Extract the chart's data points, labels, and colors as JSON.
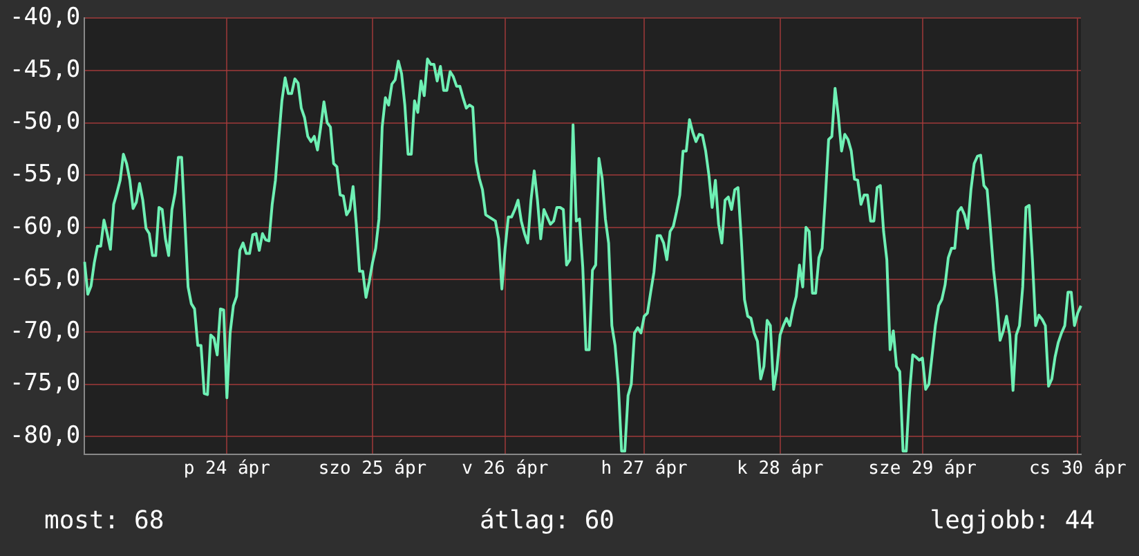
{
  "chart_data": {
    "type": "line",
    "color": "#6ef0b4",
    "categories": [
      null,
      null,
      null,
      null,
      null,
      null,
      null,
      null,
      null,
      null,
      null,
      null,
      null,
      null,
      null,
      null,
      null,
      null,
      null,
      null,
      null,
      null,
      null,
      null,
      null,
      null,
      null,
      null,
      null,
      null,
      null,
      null,
      null,
      null,
      null,
      null,
      null,
      null,
      null,
      null,
      null,
      null,
      null,
      null,
      "p 24 ápr",
      null,
      null,
      null,
      null,
      null,
      null,
      null,
      null,
      null,
      null,
      null,
      null,
      null,
      null,
      null,
      null,
      null,
      null,
      null,
      null,
      null,
      null,
      null,
      null,
      null,
      null,
      null,
      null,
      null,
      null,
      null,
      null,
      null,
      null,
      null,
      null,
      null,
      null,
      null,
      null,
      null,
      null,
      null,
      null,
      "szo 25 ápr",
      null,
      null,
      null,
      null,
      null,
      null,
      null,
      null,
      null,
      null,
      null,
      null,
      null,
      null,
      null,
      null,
      null,
      null,
      null,
      null,
      null,
      null,
      null,
      null,
      null,
      null,
      null,
      null,
      null,
      null,
      null,
      null,
      null,
      null,
      null,
      null,
      null,
      null,
      null,
      null,
      "v 26 ápr",
      null,
      null,
      null,
      null,
      null,
      null,
      null,
      null,
      null,
      null,
      null,
      null,
      null,
      null,
      null,
      null,
      null,
      null,
      null,
      null,
      null,
      null,
      null,
      null,
      null,
      null,
      null,
      null,
      null,
      null,
      null,
      null,
      null,
      null,
      null,
      null,
      null,
      null,
      null,
      null,
      null,
      null,
      "h 27 ápr",
      null,
      null,
      null,
      null,
      null,
      null,
      null,
      null,
      null,
      null,
      null,
      null,
      null,
      null,
      null,
      null,
      null,
      null,
      null,
      null,
      null,
      null,
      null,
      null,
      null,
      null,
      null,
      null,
      null,
      null,
      null,
      null,
      null,
      null,
      null,
      null,
      null,
      null,
      null,
      null,
      null,
      "k 28 ápr",
      null,
      null,
      null,
      null,
      null,
      null,
      null,
      null,
      null,
      null,
      null,
      null,
      null,
      null,
      null,
      null,
      null,
      null,
      null,
      null,
      null,
      null,
      null,
      null,
      null,
      null,
      null,
      null,
      null,
      null,
      null,
      null,
      null,
      null,
      null,
      null,
      null,
      null,
      null,
      null,
      null,
      null,
      null,
      "sze 29 ápr",
      null,
      null,
      null,
      null,
      null,
      null,
      null,
      null,
      null,
      null,
      null,
      null,
      null,
      null,
      null,
      null,
      null,
      null,
      null,
      null,
      null,
      null,
      null,
      null,
      null,
      null,
      null,
      null,
      null,
      null,
      null,
      null,
      null,
      null,
      null,
      null,
      null,
      null,
      null,
      null,
      null,
      null,
      null,
      null,
      null,
      null,
      null,
      "cs 30 ápr",
      null
    ],
    "values": [
      -63.3,
      -66.4,
      -65.6,
      -63.4,
      -61.8,
      -61.8,
      -59.3,
      -60.6,
      -62.1,
      -57.8,
      -56.7,
      -55.5,
      -53.0,
      -53.9,
      -55.5,
      -58.2,
      -57.6,
      -55.8,
      -57.4,
      -60.1,
      -60.6,
      -62.7,
      -62.7,
      -58.1,
      -58.3,
      -61.1,
      -62.7,
      -58.3,
      -56.7,
      -53.3,
      -53.3,
      -59.4,
      -65.7,
      -67.3,
      -67.8,
      -71.3,
      -71.3,
      -75.9,
      -76.0,
      -70.3,
      -70.6,
      -72.2,
      -67.8,
      -67.9,
      -76.3,
      -70.1,
      -67.5,
      -66.6,
      -62.2,
      -61.5,
      -62.5,
      -62.5,
      -60.7,
      -60.6,
      -62.2,
      -60.6,
      -61.2,
      -61.3,
      -57.8,
      -55.5,
      -51.6,
      -47.9,
      -45.7,
      -47.2,
      -47.2,
      -45.8,
      -46.2,
      -48.6,
      -49.5,
      -51.3,
      -51.8,
      -51.3,
      -52.6,
      -50.4,
      -48.0,
      -50.0,
      -50.4,
      -53.9,
      -54.2,
      -56.9,
      -57.0,
      -58.8,
      -58.3,
      -56.1,
      -59.7,
      -64.2,
      -64.2,
      -66.7,
      -65.2,
      -63.4,
      -62.0,
      -59.2,
      -50.4,
      -47.6,
      -48.3,
      -46.3,
      -45.9,
      -44.1,
      -45.3,
      -48.3,
      -53.0,
      -53.0,
      -47.9,
      -49.0,
      -46.0,
      -47.4,
      -43.9,
      -44.4,
      -44.4,
      -46.0,
      -44.6,
      -46.9,
      -46.9,
      -45.1,
      -45.6,
      -46.5,
      -46.5,
      -47.6,
      -48.6,
      -48.3,
      -48.5,
      -53.7,
      -55.3,
      -56.4,
      -58.8,
      -59.0,
      -59.2,
      -59.4,
      -61.1,
      -65.9,
      -62.0,
      -59.0,
      -59.0,
      -58.3,
      -57.4,
      -59.4,
      -60.6,
      -61.5,
      -57.4,
      -54.6,
      -57.4,
      -61.1,
      -58.3,
      -59.0,
      -59.7,
      -59.4,
      -58.1,
      -58.1,
      -58.3,
      -63.6,
      -63.1,
      -50.2,
      -59.4,
      -59.2,
      -63.8,
      -71.7,
      -71.7,
      -64.1,
      -63.6,
      -53.4,
      -55.3,
      -59.2,
      -61.5,
      -69.4,
      -71.3,
      -75.0,
      -81.4,
      -81.4,
      -76.1,
      -75.0,
      -70.1,
      -69.6,
      -70.1,
      -68.5,
      -68.2,
      -66.2,
      -64.3,
      -60.8,
      -60.8,
      -61.5,
      -63.1,
      -60.4,
      -59.9,
      -58.5,
      -56.9,
      -52.7,
      -52.7,
      -49.7,
      -50.9,
      -51.8,
      -51.1,
      -51.2,
      -52.7,
      -55.0,
      -58.1,
      -55.5,
      -59.7,
      -61.5,
      -57.4,
      -57.1,
      -58.3,
      -56.4,
      -56.2,
      -61.1,
      -66.9,
      -68.5,
      -68.7,
      -70.1,
      -70.9,
      -74.5,
      -73.3,
      -68.9,
      -69.4,
      -75.5,
      -73.6,
      -70.3,
      -69.4,
      -68.7,
      -69.4,
      -67.8,
      -66.6,
      -63.6,
      -65.7,
      -60.0,
      -60.4,
      -66.3,
      -66.3,
      -62.9,
      -62.0,
      -57.1,
      -51.6,
      -51.3,
      -46.7,
      -49.3,
      -52.7,
      -51.1,
      -51.6,
      -52.7,
      -55.4,
      -55.5,
      -57.8,
      -56.9,
      -56.9,
      -59.4,
      -59.4,
      -56.2,
      -56.0,
      -60.4,
      -63.1,
      -71.7,
      -69.9,
      -73.3,
      -73.8,
      -81.4,
      -81.4,
      -75.9,
      -72.2,
      -72.4,
      -72.7,
      -72.5,
      -75.5,
      -75.0,
      -72.2,
      -69.4,
      -67.5,
      -66.9,
      -65.5,
      -62.9,
      -62.0,
      -62.0,
      -58.5,
      -58.1,
      -58.8,
      -60.1,
      -56.4,
      -53.9,
      -53.2,
      -53.1,
      -56.0,
      -56.4,
      -60.1,
      -64.1,
      -66.9,
      -70.8,
      -69.9,
      -68.5,
      -70.3,
      -75.6,
      -70.3,
      -69.4,
      -65.7,
      -58.1,
      -57.9,
      -63.1,
      -69.4,
      -68.4,
      -68.8,
      -69.4,
      -75.2,
      -74.5,
      -72.4,
      -71.0,
      -70.1,
      -69.4,
      -66.2,
      -66.2,
      -69.4,
      -68.2,
      -67.5
    ],
    "ylim": [
      -81.7,
      -40
    ],
    "yticks": [
      {
        "value": -40,
        "label": "-40,0"
      },
      {
        "value": -45,
        "label": "-45,0"
      },
      {
        "value": -50,
        "label": "-50,0"
      },
      {
        "value": -55,
        "label": "-55,0"
      },
      {
        "value": -60,
        "label": "-60,0"
      },
      {
        "value": -65,
        "label": "-65,0"
      },
      {
        "value": -70,
        "label": "-70,0"
      },
      {
        "value": -75,
        "label": "-75,0"
      },
      {
        "value": -80,
        "label": "-80,0"
      }
    ],
    "grid": true,
    "annotations": [
      "most: 68",
      "átlag: 60",
      "legjobb: 44"
    ]
  }
}
